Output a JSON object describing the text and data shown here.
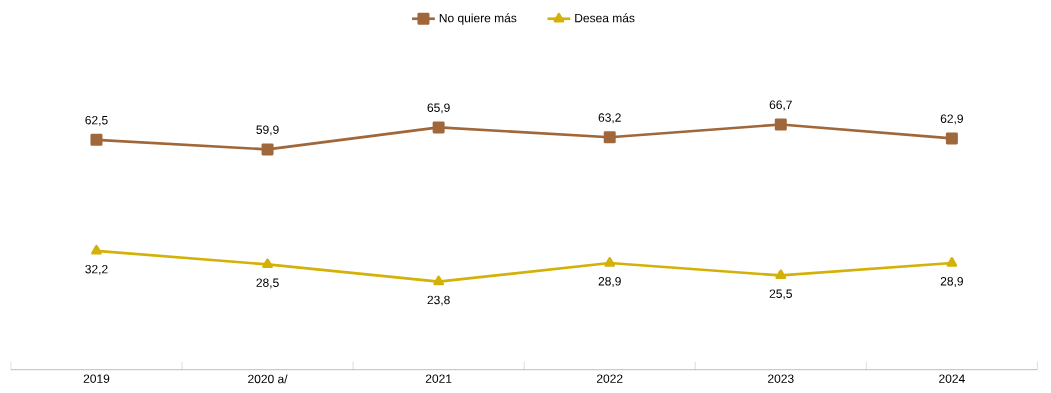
{
  "chart_data": {
    "type": "line",
    "categories": [
      "2019",
      "2020 a/",
      "2021",
      "2022",
      "2023",
      "2024"
    ],
    "series": [
      {
        "name": "No quiere más",
        "color": "#a0673a",
        "marker": "square",
        "values": [
          62.5,
          59.9,
          65.9,
          63.2,
          66.7,
          62.9
        ],
        "value_labels": [
          "62,5",
          "59,9",
          "65,9",
          "63,2",
          "66,7",
          "62,9"
        ]
      },
      {
        "name": "Desea más",
        "color": "#d4b106",
        "marker": "triangle",
        "values": [
          32.2,
          28.5,
          23.8,
          28.9,
          25.5,
          28.9
        ],
        "value_labels": [
          "32,2",
          "28,5",
          "23,8",
          "28,9",
          "25,5",
          "28,9"
        ]
      }
    ],
    "tick_labels": "x",
    "legend": "top",
    "line_style": "solid"
  }
}
